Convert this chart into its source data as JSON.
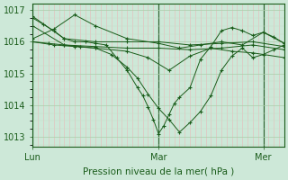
{
  "title": "",
  "xlabel": "Pression niveau de la mer( hPa )",
  "ylabel": "",
  "bg_color": "#cde8d8",
  "plot_bg_color": "#cde8d8",
  "line_color": "#1a5c1a",
  "marker": "+",
  "ylim": [
    1012.7,
    1017.2
  ],
  "yticks": [
    1013,
    1014,
    1015,
    1016,
    1017
  ],
  "xlim": [
    0,
    48
  ],
  "xtick_positions": [
    0,
    24,
    44
  ],
  "xtick_labels": [
    "Lun",
    "Mar",
    "Mer"
  ],
  "series": [
    {
      "x": [
        0,
        6,
        12,
        18,
        24,
        30,
        36,
        42,
        48
      ],
      "y": [
        1016.8,
        1016.1,
        1016.0,
        1016.0,
        1016.0,
        1015.9,
        1015.95,
        1016.0,
        1015.85
      ]
    },
    {
      "x": [
        0,
        6,
        12,
        18,
        24,
        30,
        36,
        42,
        48
      ],
      "y": [
        1016.5,
        1015.9,
        1015.85,
        1015.8,
        1015.8,
        1015.75,
        1015.8,
        1015.9,
        1015.75
      ]
    },
    {
      "x": [
        0,
        4,
        8,
        12,
        18,
        24,
        28,
        32,
        36,
        40,
        44,
        48
      ],
      "y": [
        1016.1,
        1016.4,
        1016.85,
        1016.5,
        1016.1,
        1015.95,
        1015.8,
        1015.9,
        1016.0,
        1015.9,
        1016.3,
        1015.95
      ]
    },
    {
      "x": [
        0,
        4,
        8,
        12,
        18,
        22,
        26,
        30,
        34,
        38,
        42,
        48
      ],
      "y": [
        1016.0,
        1015.9,
        1015.85,
        1015.8,
        1015.7,
        1015.5,
        1015.1,
        1015.55,
        1015.8,
        1015.7,
        1015.65,
        1015.5
      ]
    },
    {
      "x": [
        0,
        3,
        6,
        9,
        12,
        15,
        18,
        20,
        22,
        24,
        26,
        28,
        30,
        32,
        34,
        36,
        38,
        40,
        42,
        44,
        46,
        48
      ],
      "y": [
        1016.0,
        1015.95,
        1015.9,
        1015.85,
        1015.8,
        1015.6,
        1015.2,
        1014.85,
        1014.35,
        1013.9,
        1013.55,
        1013.15,
        1013.45,
        1013.8,
        1014.3,
        1015.1,
        1015.55,
        1015.8,
        1015.5,
        1015.6,
        1015.75,
        1015.9
      ]
    },
    {
      "x": [
        0,
        2,
        4,
        6,
        8,
        10,
        12,
        14,
        16,
        18,
        20,
        21,
        22,
        23,
        24,
        25,
        26,
        27,
        28,
        30,
        32,
        34,
        36,
        38,
        40,
        42,
        44,
        46,
        48
      ],
      "y": [
        1016.75,
        1016.55,
        1016.35,
        1016.1,
        1016.0,
        1016.0,
        1015.95,
        1015.9,
        1015.5,
        1015.1,
        1014.55,
        1014.3,
        1013.95,
        1013.55,
        1013.1,
        1013.35,
        1013.7,
        1014.05,
        1014.25,
        1014.55,
        1015.45,
        1015.85,
        1016.35,
        1016.45,
        1016.35,
        1016.2,
        1016.3,
        1016.15,
        1015.95
      ]
    }
  ],
  "grid_x_minor_color": "#e8b8b8",
  "grid_x_minor_spacing": 1,
  "grid_y_major_color": "#aaccaa",
  "vline_color": "#336633",
  "vline_x": [
    0,
    24,
    44
  ]
}
